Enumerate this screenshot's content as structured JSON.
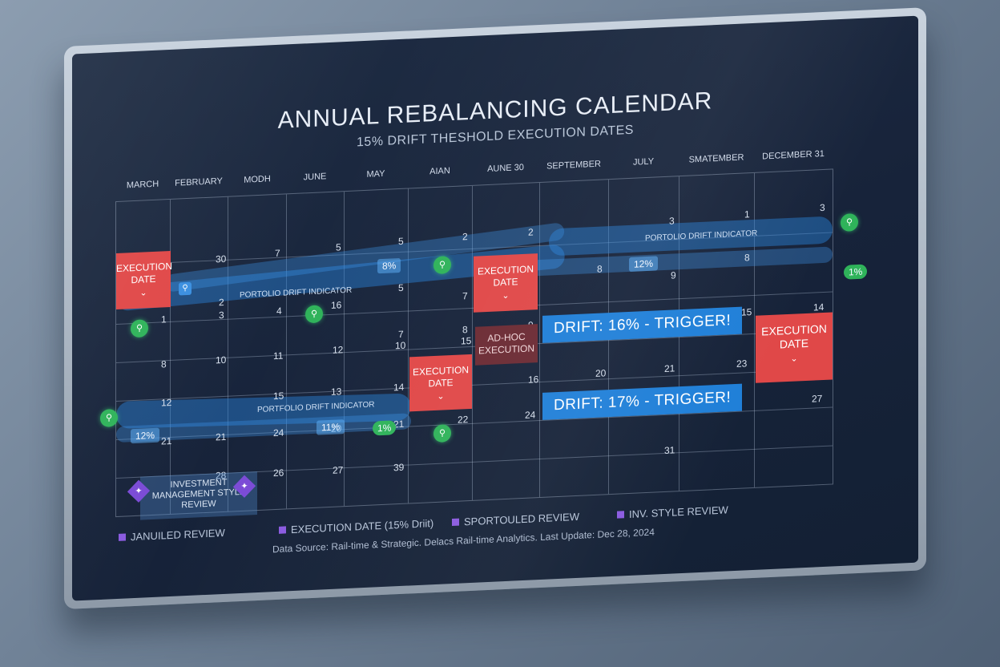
{
  "header": {
    "title": "ANNUAL REBALANCING CALENDAR",
    "subtitle": "15% DRIFT THESHOLD EXECUTION DATES"
  },
  "months": [
    "MARCH",
    "FEBRUARY",
    "MODH",
    "JUNE",
    "MAY",
    "AIAN",
    "AUNE 30",
    "SEPTEMBER",
    "JULY",
    "SMATEMBER",
    "DECEMBER 31"
  ],
  "days": [
    "30",
    "7",
    "5",
    "5",
    "2",
    "2",
    "3",
    "1",
    "3",
    "1",
    "2",
    "3",
    "4",
    "16",
    "5",
    "7",
    "9",
    "8",
    "8",
    "14",
    "7",
    "8",
    "9",
    "10",
    "15",
    "10",
    "8",
    "10",
    "11",
    "12",
    "10",
    "15",
    "12",
    "15",
    "13",
    "14",
    "16",
    "20",
    "21",
    "23",
    "21",
    "21",
    "24",
    "20",
    "21",
    "22",
    "24",
    "27",
    "28",
    "26",
    "27",
    "39",
    "31"
  ],
  "band_labels": [
    "PORTOLIO DRIFT INDICATOR",
    "PORTOLIO DRIFT INDICATOR",
    "PORTFOLIO DRIFT INDICATOR"
  ],
  "percents": [
    "8%",
    "12%",
    "12%",
    "11%",
    "1%",
    "1%"
  ],
  "exec_label": "EXECUTION DATE",
  "adhoc_label": "AD-HOC EXECUTION",
  "triggers": [
    "DRIFT: 16% - TRIGGER!",
    "DRIFT: 17% - TRIGGER!"
  ],
  "review_label": "INVESTMENT MANAGEMENT STYLE REVIEW",
  "legend": [
    "JANUILED REVIEW",
    "EXECUTION DATE (15% Driit)",
    "SPORTOULED REVIEW",
    "INV. STYLE REVIEW"
  ],
  "source": "Data Source: Rail-time & Strategic. Delacs Rail-time Analytics. Last Update: Dec 28, 2024",
  "colors": {
    "execution": "#e04848",
    "adhoc": "#6b2a33",
    "band": "#2882dc",
    "trigger": "#1f7fd8",
    "search_dot": "#2fb35a",
    "review_marker": "#7b4bd6"
  },
  "icons": {
    "dot": "search-icon",
    "marker": "diamond-icon"
  }
}
